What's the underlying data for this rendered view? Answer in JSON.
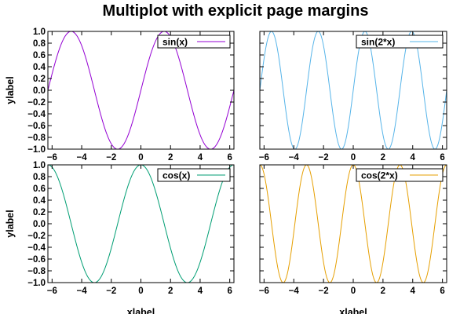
{
  "title": "Multiplot with explicit page margins",
  "chart_data": [
    {
      "type": "line",
      "function": "sin(x)",
      "series": [
        {
          "name": "sin(x)",
          "expr": "sin(x)",
          "color": "#9400d3"
        }
      ],
      "xlim": [
        -6.2832,
        6.2832
      ],
      "ylim": [
        -1,
        1
      ],
      "xticks": [
        -6,
        -4,
        -2,
        0,
        2,
        4,
        6
      ],
      "xtick_labels": [
        "−6",
        "−4",
        "−2",
        "0",
        "2",
        "4",
        "6"
      ],
      "yticks": [
        1.0,
        0.8,
        0.6,
        0.4,
        0.2,
        0.0,
        -0.2,
        -0.4,
        -0.6,
        -0.8,
        -1.0
      ],
      "ytick_labels": [
        "1.0",
        "0.8",
        "0.6",
        "0.4",
        "0.2",
        "0.0",
        "−0.2",
        "−0.4",
        "−0.6",
        "−0.8",
        "−1.0"
      ],
      "ylabel": "ylabel",
      "xlabel": "",
      "show_yticklabels": true,
      "legend": "top-right"
    },
    {
      "type": "line",
      "function": "sin(2x)",
      "series": [
        {
          "name": "sin(2*x)",
          "expr": "sin(2*x)",
          "color": "#56b4e9"
        }
      ],
      "xlim": [
        -6.2832,
        6.2832
      ],
      "ylim": [
        -1,
        1
      ],
      "xticks": [
        -6,
        -4,
        -2,
        0,
        2,
        4,
        6
      ],
      "xtick_labels": [
        "−6",
        "−4",
        "−2",
        "0",
        "2",
        "4",
        "6"
      ],
      "yticks": [
        1.0,
        0.8,
        0.6,
        0.4,
        0.2,
        0.0,
        -0.2,
        -0.4,
        -0.6,
        -0.8,
        -1.0
      ],
      "ytick_labels": [],
      "ylabel": "",
      "xlabel": "",
      "show_yticklabels": false,
      "legend": "top-right"
    },
    {
      "type": "line",
      "function": "cos(x)",
      "series": [
        {
          "name": "cos(x)",
          "expr": "cos(x)",
          "color": "#009e73"
        }
      ],
      "xlim": [
        -6.2832,
        6.2832
      ],
      "ylim": [
        -1,
        1
      ],
      "xticks": [
        -6,
        -4,
        -2,
        0,
        2,
        4,
        6
      ],
      "xtick_labels": [
        "−6",
        "−4",
        "−2",
        "0",
        "2",
        "4",
        "6"
      ],
      "yticks": [
        1.0,
        0.8,
        0.6,
        0.4,
        0.2,
        0.0,
        -0.2,
        -0.4,
        -0.6,
        -0.8,
        -1.0
      ],
      "ytick_labels": [
        "1.0",
        "0.8",
        "0.6",
        "0.4",
        "0.2",
        "0.0",
        "−0.2",
        "−0.4",
        "−0.6",
        "−0.8",
        "−1.0"
      ],
      "ylabel": "ylabel",
      "xlabel": "xlabel",
      "show_yticklabels": true,
      "legend": "top-right"
    },
    {
      "type": "line",
      "function": "cos(2x)",
      "series": [
        {
          "name": "cos(2*x)",
          "expr": "cos(2*x)",
          "color": "#e69f00"
        }
      ],
      "xlim": [
        -6.2832,
        6.2832
      ],
      "ylim": [
        -1,
        1
      ],
      "xticks": [
        -6,
        -4,
        -2,
        0,
        2,
        4,
        6
      ],
      "xtick_labels": [
        "−6",
        "−4",
        "−2",
        "0",
        "2",
        "4",
        "6"
      ],
      "yticks": [
        1.0,
        0.8,
        0.6,
        0.4,
        0.2,
        0.0,
        -0.2,
        -0.4,
        -0.6,
        -0.8,
        -1.0
      ],
      "ytick_labels": [],
      "ylabel": "",
      "xlabel": "xlabel",
      "show_yticklabels": false,
      "legend": "top-right"
    }
  ]
}
